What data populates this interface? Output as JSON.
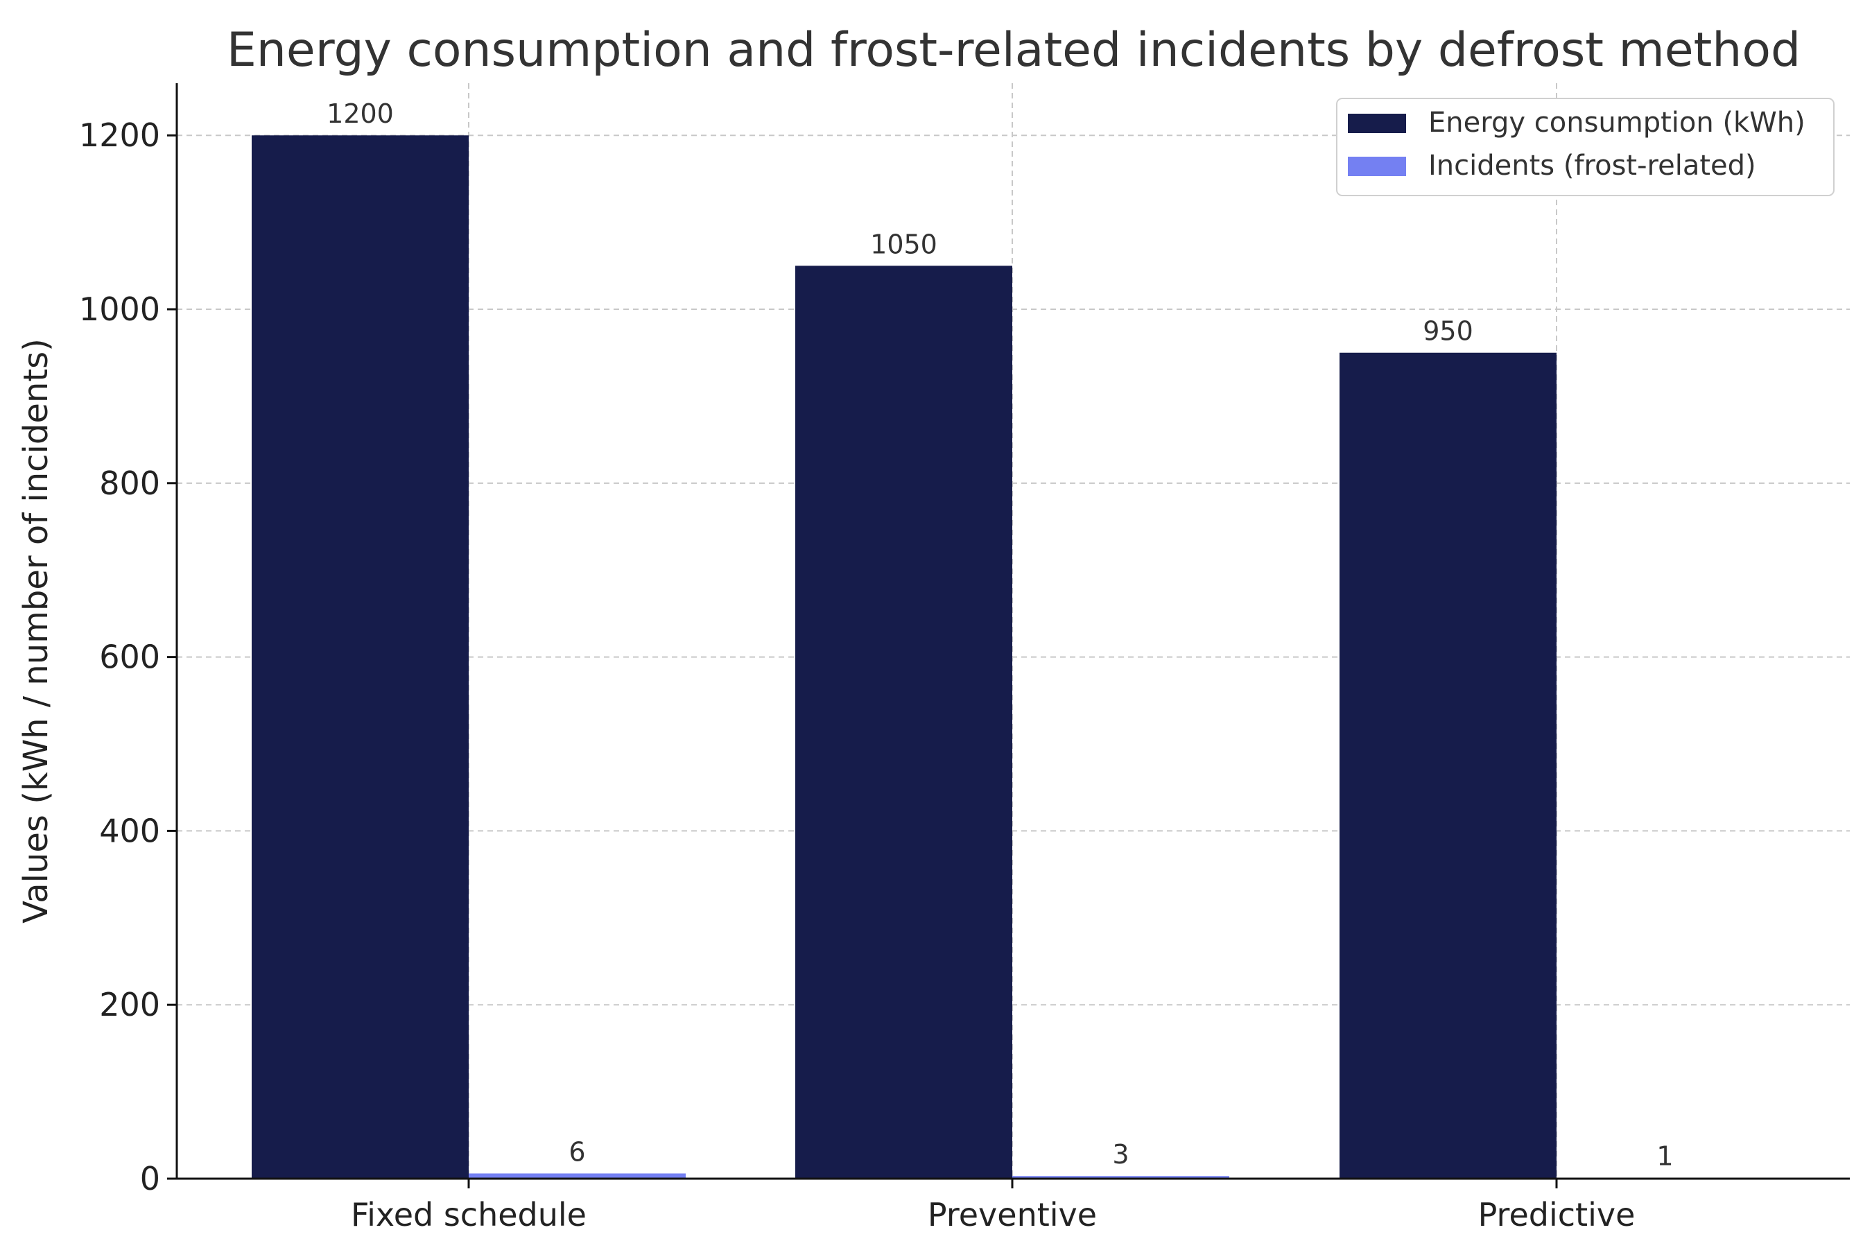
{
  "chart_data": {
    "type": "bar",
    "title": "Energy consumption and frost-related incidents by defrost method",
    "xlabel": "",
    "ylabel": "Values (kWh / number of incidents)",
    "categories": [
      "Fixed schedule",
      "Preventive",
      "Predictive"
    ],
    "series": [
      {
        "name": "Energy consumption (kWh)",
        "values": [
          1200,
          1050,
          950
        ],
        "color": "#161c4b"
      },
      {
        "name": "Incidents (frost-related)",
        "values": [
          6,
          3,
          1
        ],
        "color": "#7480f2"
      }
    ],
    "ylim": [
      0,
      1260
    ],
    "yticks": [
      0,
      200,
      400,
      600,
      800,
      1000,
      1200
    ],
    "grid": true,
    "legend_position": "top-right",
    "data_labels": true
  }
}
